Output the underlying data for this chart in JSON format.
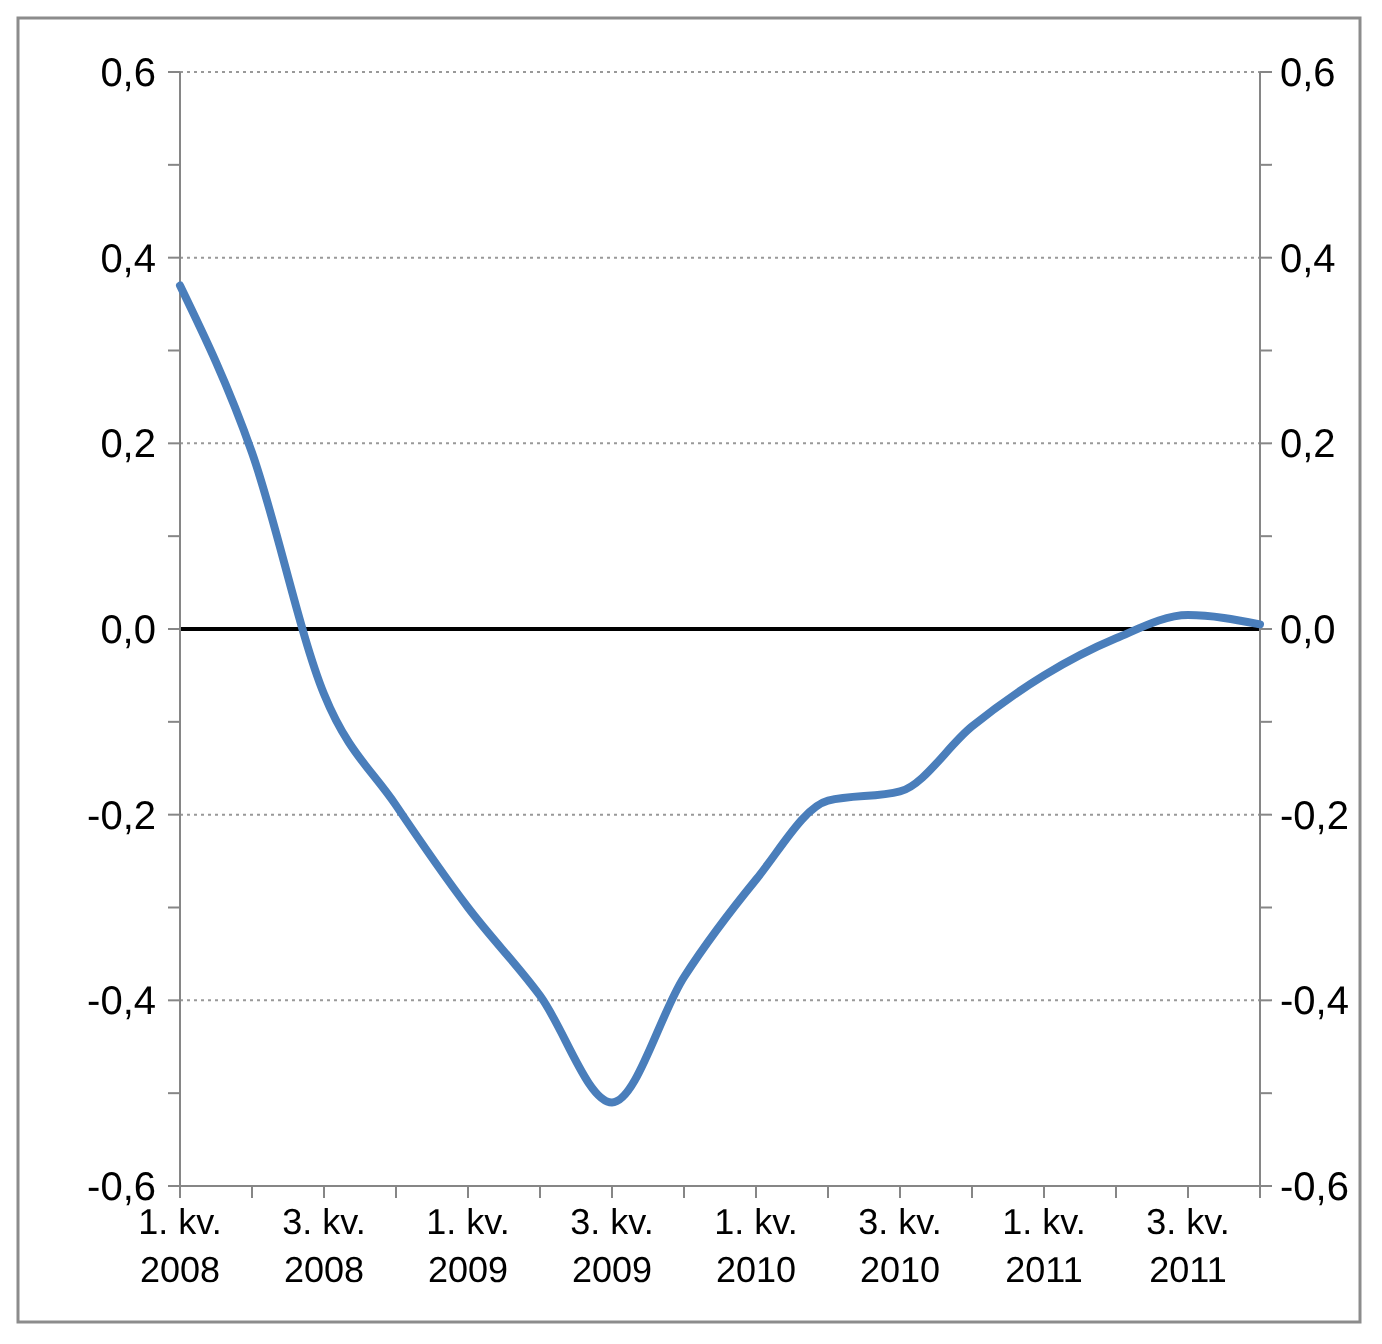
{
  "chart_data": {
    "type": "line",
    "categories": [
      "1. kv. 2008",
      null,
      "3. kv. 2008",
      null,
      "1. kv. 2009",
      null,
      "3. kv. 2009",
      null,
      "1. kv. 2010",
      null,
      "3. kv. 2010",
      null,
      "1. kv. 2011",
      null,
      "3. kv. 2011",
      null
    ],
    "series": [
      {
        "color": "#4a7ebb",
        "values": [
          0.37,
          0.19,
          -0.07,
          -0.19,
          -0.3,
          -0.395,
          -0.51,
          -0.375,
          -0.27,
          -0.185,
          -0.175,
          -0.105,
          -0.05,
          -0.01,
          0.015,
          0.005
        ]
      }
    ],
    "ylim": [
      -0.6,
      0.6
    ],
    "yticks": [
      {
        "value": -0.6,
        "label": "-0,6"
      },
      {
        "value": -0.5,
        "label": null
      },
      {
        "value": -0.4,
        "label": "-0,4"
      },
      {
        "value": -0.3,
        "label": null
      },
      {
        "value": -0.2,
        "label": "-0,2"
      },
      {
        "value": -0.1,
        "label": null
      },
      {
        "value": 0,
        "label": "0,0"
      },
      {
        "value": 0.1,
        "label": null
      },
      {
        "value": 0.2,
        "label": "0,2"
      },
      {
        "value": 0.3,
        "label": null
      },
      {
        "value": 0.4,
        "label": "0,4"
      },
      {
        "value": 0.5,
        "label": null
      },
      {
        "value": 0.6,
        "label": "0,6"
      }
    ],
    "y2lim": [
      -0.6,
      0.6
    ],
    "y2ticks": [
      {
        "value": -0.6,
        "label": "-0,6"
      },
      {
        "value": -0.5,
        "label": null
      },
      {
        "value": -0.4,
        "label": "-0,4"
      },
      {
        "value": -0.3,
        "label": null
      },
      {
        "value": -0.2,
        "label": "-0,2"
      },
      {
        "value": -0.1,
        "label": null
      },
      {
        "value": 0,
        "label": "0,0"
      },
      {
        "value": 0.1,
        "label": null
      },
      {
        "value": 0.2,
        "label": "0,2"
      },
      {
        "value": 0.3,
        "label": null
      },
      {
        "value": 0.4,
        "label": "0,4"
      },
      {
        "value": 0.5,
        "label": null
      },
      {
        "value": 0.6,
        "label": "0,6"
      }
    ],
    "grid": "y",
    "marker": "none",
    "line_style": "solid",
    "ref_lines": [
      {
        "axis": "y",
        "value": 0,
        "color": "#000000"
      }
    ]
  }
}
